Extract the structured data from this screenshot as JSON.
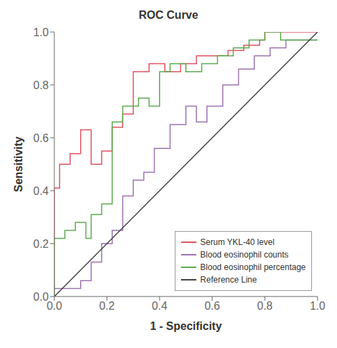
{
  "chart_data": {
    "type": "line",
    "title": "ROC Curve",
    "x_label": "1 - Specificity",
    "y_label": "Sensitivity",
    "xlim": [
      0,
      1
    ],
    "ylim": [
      0,
      1
    ],
    "xticks": [
      {
        "value": 0,
        "label": "0.0"
      },
      {
        "value": 0.2,
        "label": "0.2"
      },
      {
        "value": 0.4,
        "label": "0.4"
      },
      {
        "value": 0.6,
        "label": "0.6"
      },
      {
        "value": 0.8,
        "label": "0.8"
      },
      {
        "value": 1,
        "label": "1.0"
      }
    ],
    "yticks": [
      {
        "value": 0,
        "label": "0.0"
      },
      {
        "value": 0.2,
        "label": "0.2"
      },
      {
        "value": 0.4,
        "label": "0.4"
      },
      {
        "value": 0.6,
        "label": "0.6"
      },
      {
        "value": 0.8,
        "label": "0.8"
      },
      {
        "value": 1,
        "label": "1.0"
      }
    ],
    "grid": false,
    "legend": "lower right",
    "series": [
      {
        "name": "Serum YKL-40 level",
        "color": "#e05060",
        "x": [
          0.0,
          0.0,
          0.02,
          0.02,
          0.06,
          0.06,
          0.1,
          0.1,
          0.14,
          0.14,
          0.18,
          0.18,
          0.22,
          0.22,
          0.26,
          0.26,
          0.3,
          0.3,
          0.36,
          0.36,
          0.42,
          0.42,
          0.48,
          0.48,
          0.54,
          0.54,
          0.6,
          0.6,
          0.66,
          0.66,
          0.72,
          0.72,
          0.78,
          0.78,
          0.8,
          0.8,
          1.0
        ],
        "values": [
          0.0,
          0.41,
          0.41,
          0.5,
          0.5,
          0.54,
          0.54,
          0.63,
          0.63,
          0.5,
          0.5,
          0.55,
          0.55,
          0.64,
          0.64,
          0.69,
          0.69,
          0.85,
          0.85,
          0.88,
          0.88,
          0.85,
          0.85,
          0.88,
          0.88,
          0.91,
          0.91,
          0.91,
          0.91,
          0.93,
          0.93,
          0.95,
          0.95,
          0.97,
          0.97,
          1.0,
          1.0
        ]
      },
      {
        "name": "Blood eosinophil counts",
        "color": "#9b72b0",
        "x": [
          0.0,
          0.0,
          0.1,
          0.1,
          0.14,
          0.14,
          0.18,
          0.18,
          0.22,
          0.22,
          0.26,
          0.26,
          0.3,
          0.3,
          0.34,
          0.34,
          0.38,
          0.38,
          0.44,
          0.44,
          0.5,
          0.5,
          0.54,
          0.54,
          0.58,
          0.58,
          0.64,
          0.64,
          0.7,
          0.7,
          0.76,
          0.76,
          0.82,
          0.82,
          0.88,
          0.88,
          1.0
        ],
        "values": [
          0.0,
          0.03,
          0.03,
          0.06,
          0.06,
          0.13,
          0.13,
          0.2,
          0.2,
          0.25,
          0.25,
          0.38,
          0.38,
          0.44,
          0.44,
          0.47,
          0.47,
          0.56,
          0.56,
          0.65,
          0.65,
          0.72,
          0.72,
          0.66,
          0.66,
          0.72,
          0.72,
          0.8,
          0.8,
          0.86,
          0.86,
          0.91,
          0.91,
          0.94,
          0.94,
          0.97,
          0.97
        ]
      },
      {
        "name": "Blood eosinophil percentage",
        "color": "#5aab4e",
        "x": [
          0.0,
          0.0,
          0.04,
          0.04,
          0.08,
          0.08,
          0.12,
          0.12,
          0.14,
          0.14,
          0.18,
          0.18,
          0.22,
          0.22,
          0.26,
          0.26,
          0.32,
          0.32,
          0.36,
          0.36,
          0.4,
          0.4,
          0.44,
          0.44,
          0.5,
          0.5,
          0.56,
          0.56,
          0.62,
          0.62,
          0.68,
          0.68,
          0.74,
          0.74,
          0.8,
          0.8,
          0.86,
          0.86,
          1.0
        ],
        "values": [
          0.0,
          0.22,
          0.22,
          0.25,
          0.25,
          0.28,
          0.28,
          0.22,
          0.22,
          0.31,
          0.31,
          0.35,
          0.35,
          0.66,
          0.66,
          0.72,
          0.72,
          0.75,
          0.75,
          0.72,
          0.72,
          0.85,
          0.85,
          0.88,
          0.88,
          0.85,
          0.85,
          0.88,
          0.88,
          0.91,
          0.91,
          0.94,
          0.94,
          0.97,
          0.97,
          1.0,
          1.0,
          0.97,
          0.97
        ]
      },
      {
        "name": "Reference Line",
        "color": "#404040",
        "x": [
          0,
          1
        ],
        "values": [
          0,
          1
        ]
      }
    ]
  }
}
